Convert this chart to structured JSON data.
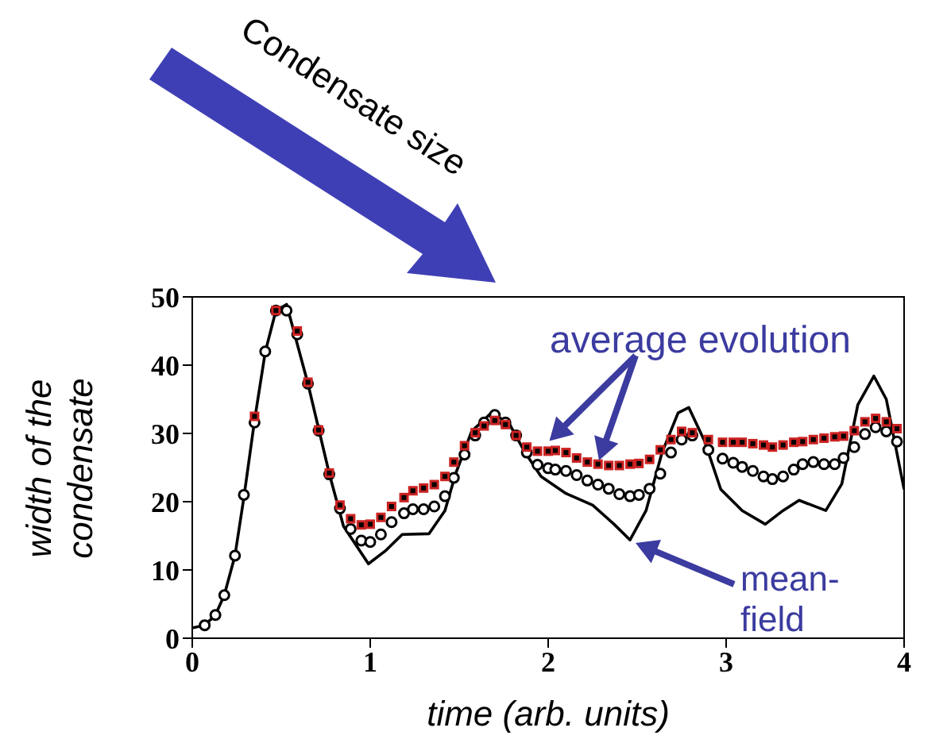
{
  "chart_data": {
    "type": "line",
    "xlabel": "time (arb. units)",
    "ylabel": "width of the condensate",
    "xlim": [
      0,
      4
    ],
    "ylim": [
      0,
      50
    ],
    "xticks": [
      0,
      1,
      2,
      3,
      4
    ],
    "yticks": [
      0,
      10,
      20,
      30,
      40,
      50
    ],
    "annotations": [
      "Condensate size",
      {
        "text": "average evolution",
        "x": 1.98,
        "y": 27.5
      },
      "mean-field"
    ],
    "series": [
      {
        "color": "#000000",
        "marker": "none",
        "x": [
          0,
          0.07,
          0.13,
          0.18,
          0.24,
          0.29,
          0.35,
          0.41,
          0.47,
          0.53,
          0.65,
          0.77,
          0.85,
          0.99,
          1.09,
          1.18,
          1.33,
          1.42,
          1.48,
          1.57,
          1.68,
          1.78,
          1.87,
          1.96,
          2.1,
          2.25,
          2.37,
          2.46,
          2.55,
          2.64,
          2.73,
          2.79,
          2.88,
          2.97,
          3.09,
          3.22,
          3.32,
          3.41,
          3.56,
          3.65,
          3.74,
          3.83,
          3.9,
          4
        ],
        "values": [
          1.5,
          1.9,
          3.4,
          6.3,
          12.1,
          20.6,
          31.9,
          41.9,
          48,
          48.9,
          37.3,
          24.1,
          16.4,
          10.9,
          12.9,
          15.2,
          15.3,
          18.7,
          24.1,
          30.3,
          33,
          31.5,
          27.2,
          23.7,
          21.2,
          19.5,
          16.7,
          14.4,
          18.7,
          27.2,
          33,
          33.8,
          28.8,
          21.8,
          18.7,
          16.7,
          18.7,
          20.2,
          18.7,
          22.6,
          34.2,
          38.4,
          35,
          21.8
        ]
      },
      {
        "type": "scatter",
        "color": "#000000",
        "marker": "circle",
        "x": [
          0.07,
          0.13,
          0.18,
          0.24,
          0.29,
          0.35,
          0.41,
          0.47,
          0.53,
          0.59,
          0.65,
          0.71,
          0.77,
          0.83,
          0.89,
          0.95,
          1.0,
          1.06,
          1.12,
          1.19,
          1.24,
          1.3,
          1.36,
          1.42,
          1.47,
          1.53,
          1.59,
          1.64,
          1.7,
          1.76,
          1.82,
          1.88,
          1.94,
          2.0,
          2.04,
          2.1,
          2.16,
          2.22,
          2.28,
          2.34,
          2.4,
          2.46,
          2.51,
          2.57,
          2.63,
          2.69,
          2.75,
          2.81,
          2.9,
          2.98,
          3.04,
          3.09,
          3.15,
          3.21,
          3.26,
          3.32,
          3.38,
          3.43,
          3.49,
          3.55,
          3.61,
          3.66,
          3.72,
          3.78,
          3.84,
          3.9,
          3.96
        ],
        "values": [
          1.9,
          3.4,
          6.3,
          12.1,
          21,
          31.6,
          42,
          48,
          48,
          44.5,
          37.3,
          30.4,
          24,
          19,
          16,
          14.3,
          14.1,
          15.2,
          17,
          18.3,
          18.9,
          18.9,
          19.3,
          20.8,
          23.5,
          26.9,
          29.7,
          31.6,
          32.7,
          31.6,
          29.7,
          27.2,
          25.4,
          24.9,
          24.7,
          24.5,
          23.9,
          23.1,
          22.5,
          21.9,
          21.1,
          20.8,
          21,
          21.9,
          24.1,
          27.2,
          29.1,
          29.7,
          27.6,
          26.3,
          25.7,
          25.1,
          24.5,
          23.7,
          23.3,
          23.7,
          24.7,
          25.5,
          25.8,
          25.5,
          25.5,
          26.4,
          28,
          29.9,
          30.9,
          30.3,
          28.8
        ]
      },
      {
        "type": "scatter",
        "color": "#cc2222",
        "marker": "square",
        "x": [
          0.35,
          0.47,
          0.59,
          0.65,
          0.71,
          0.77,
          0.83,
          0.89,
          0.95,
          1.0,
          1.06,
          1.12,
          1.19,
          1.24,
          1.3,
          1.36,
          1.42,
          1.47,
          1.53,
          1.59,
          1.64,
          1.7,
          1.76,
          1.82,
          1.88,
          1.94,
          2.0,
          2.04,
          2.1,
          2.16,
          2.22,
          2.28,
          2.34,
          2.4,
          2.46,
          2.51,
          2.57,
          2.63,
          2.69,
          2.75,
          2.81,
          2.9,
          2.98,
          3.04,
          3.09,
          3.15,
          3.21,
          3.26,
          3.32,
          3.38,
          3.43,
          3.49,
          3.55,
          3.61,
          3.66,
          3.72,
          3.78,
          3.84,
          3.9,
          3.96
        ],
        "values": [
          32.5,
          48,
          45,
          37.5,
          30.5,
          24.2,
          19.5,
          17.5,
          16.6,
          16.7,
          17.7,
          19.3,
          20.6,
          21.6,
          22,
          22.5,
          23.7,
          25.8,
          28.2,
          30.1,
          31.1,
          31.9,
          31.3,
          29.7,
          28,
          27.4,
          27.4,
          27.5,
          27.2,
          26.4,
          25.8,
          25.5,
          25.3,
          25.3,
          25.5,
          25.6,
          26.2,
          27.6,
          29.1,
          30.3,
          30.1,
          29.1,
          28.7,
          28.7,
          28.7,
          28.5,
          28.3,
          28,
          28.3,
          28.7,
          28.8,
          29.1,
          29.3,
          29.5,
          29.6,
          30.4,
          31.7,
          32.2,
          31.7,
          30.7
        ]
      }
    ]
  }
}
